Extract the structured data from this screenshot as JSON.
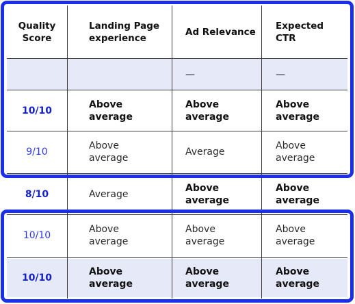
{
  "table": {
    "headers": [
      "Quality Score",
      "Landing Page experience",
      "Ad Relevance",
      "Expected CTR"
    ],
    "rows": [
      [
        "",
        "",
        "—",
        "—"
      ],
      [
        "10/10",
        "Above average",
        "Above average",
        "Above average"
      ],
      [
        "9/10",
        "Above average",
        "Average",
        "Above average"
      ],
      [
        "8/10",
        "Average",
        "Above average",
        "Above average"
      ],
      [
        "10/10",
        "Above average",
        "Above average",
        "Above average"
      ],
      [
        "10/10",
        "Above average",
        "Above average",
        "Above average"
      ]
    ]
  },
  "colors": {
    "highlight_border": "#1b2ee9",
    "score_text": "#1f2ee0",
    "row_shade": "#e6e9f8"
  }
}
